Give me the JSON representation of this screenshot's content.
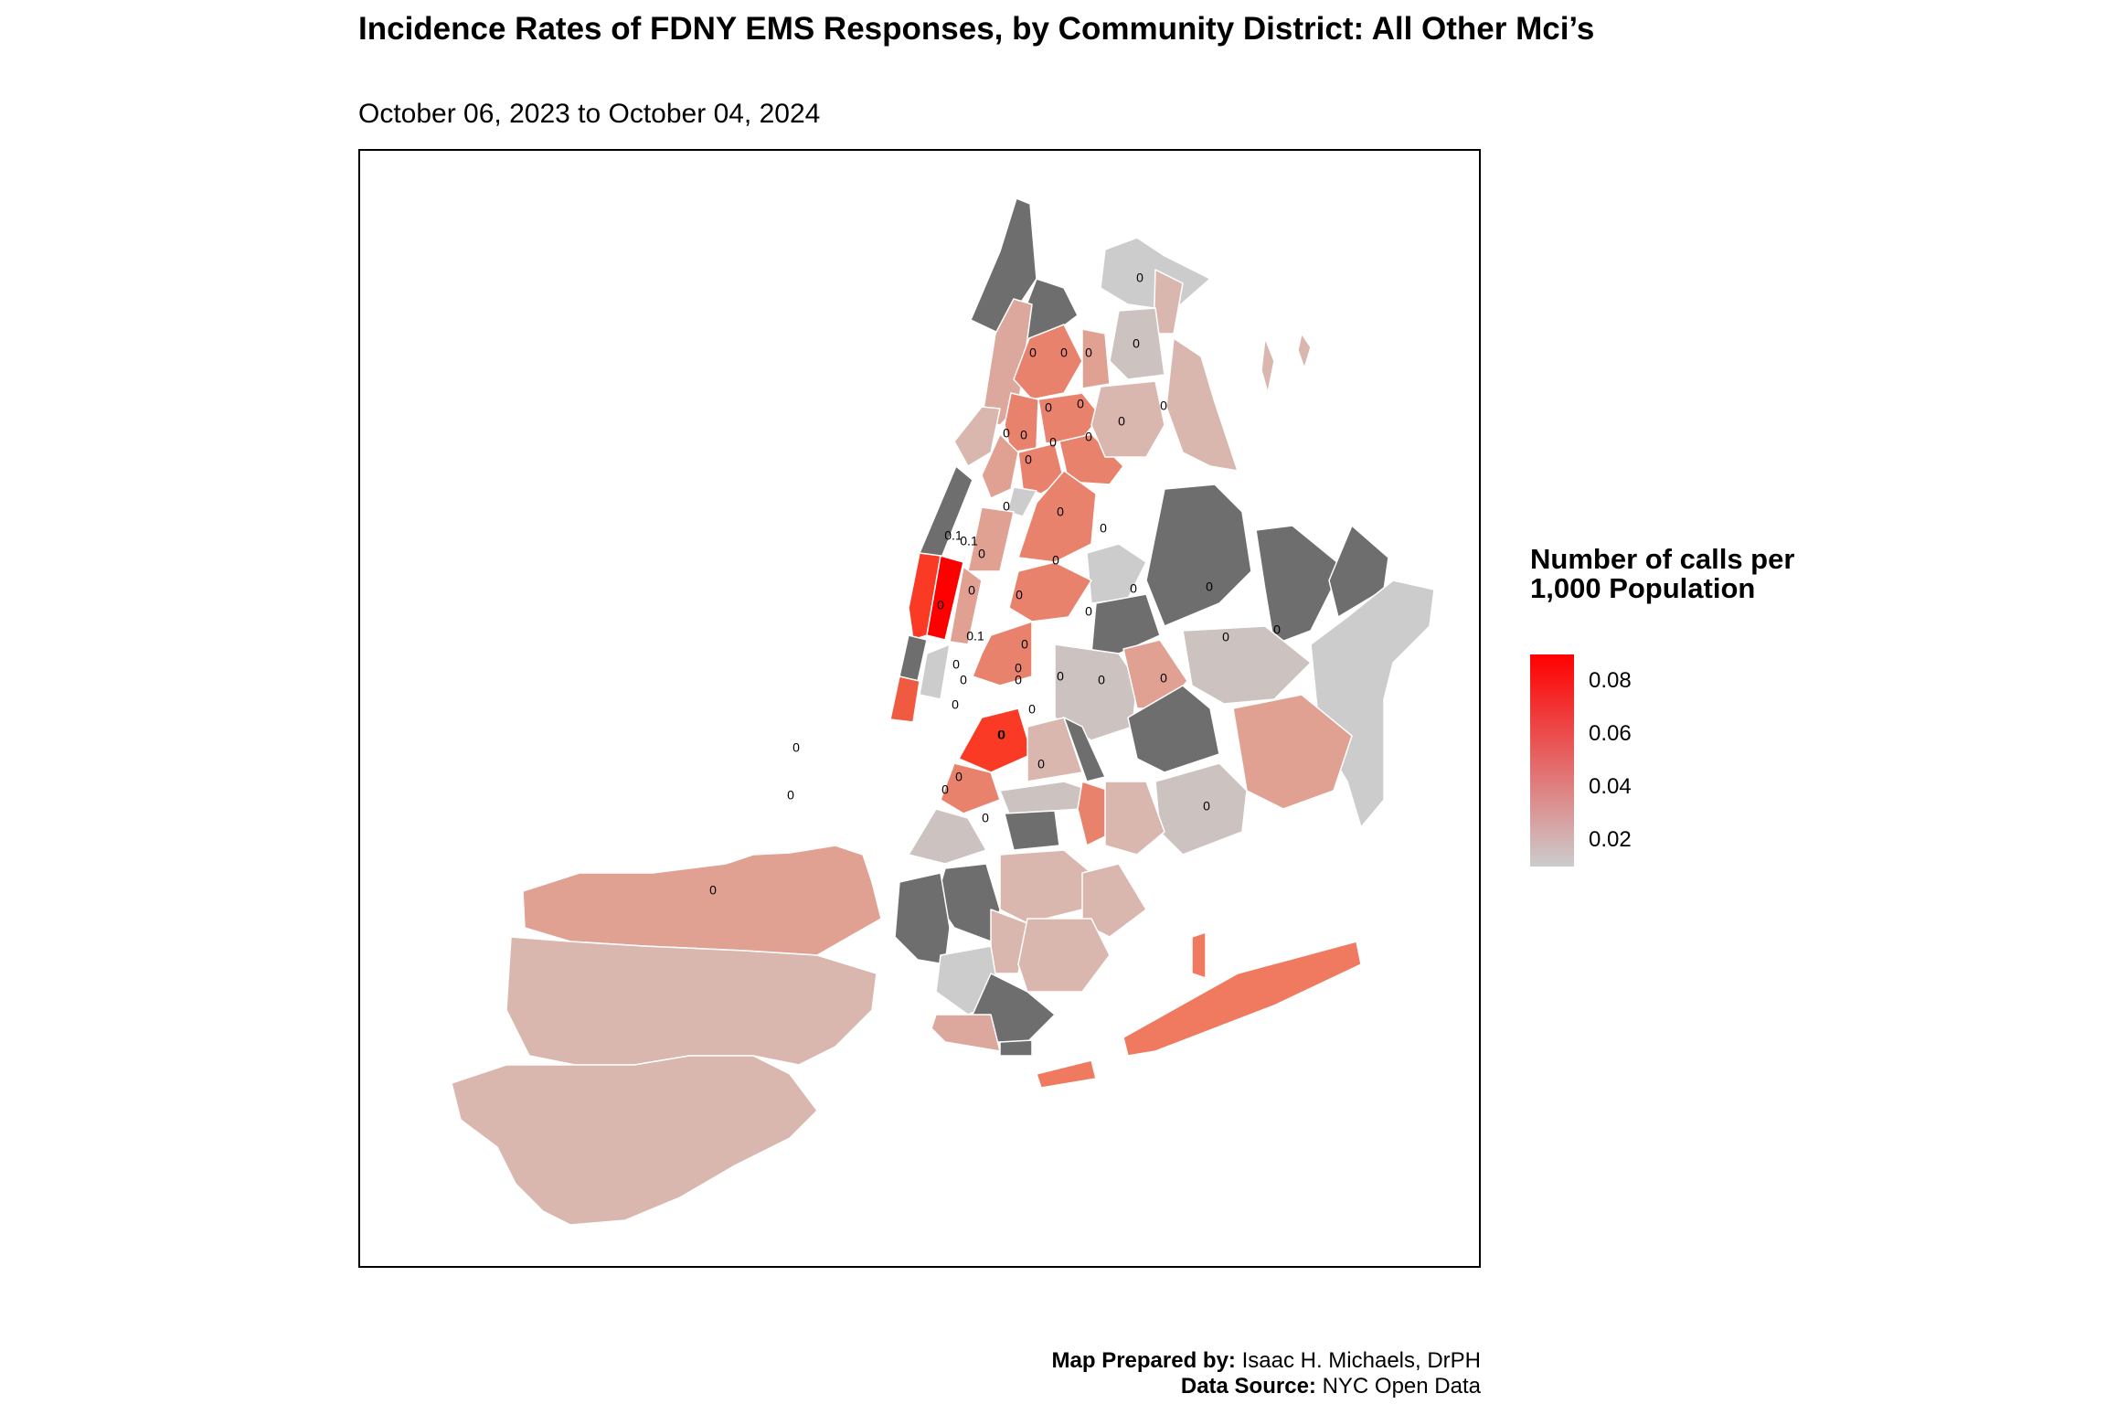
{
  "title": "Incidence Rates of FDNY EMS Responses, by Community District: All Other Mci’s",
  "subtitle": "October 06, 2023 to October 04, 2024",
  "legend": {
    "title": "Number of calls per 1,000 Population",
    "ticks": [
      "0.08",
      "0.06",
      "0.04",
      "0.02"
    ],
    "tick_values": [
      0.08,
      0.06,
      0.04,
      0.02
    ],
    "range": [
      0.01,
      0.09
    ],
    "color_low": "#cccccc",
    "color_high": "#ff0000",
    "no_data_color": "#6e6e6e"
  },
  "credits": {
    "prepared_label": "Map Prepared by:",
    "prepared_value": "Isaac H. Michaels, DrPH",
    "source_label": "Data Source:",
    "source_value": "NYC Open Data"
  },
  "map_labels": [
    "0",
    "0",
    "0",
    "0",
    "0",
    "0",
    "0",
    "0",
    "0",
    "0",
    "0",
    "0",
    "0",
    "0",
    "0",
    "0",
    "0.1",
    "0.1",
    "0",
    "0",
    "0",
    "0",
    "0",
    "0",
    "0",
    "0",
    "0",
    "0",
    "0",
    "0",
    "0.1",
    "0",
    "0",
    "0",
    "0",
    "0",
    "0",
    "0",
    "0",
    "0",
    "0",
    "0",
    "0",
    "0",
    "0",
    "0",
    "0",
    "0",
    "0",
    "0"
  ]
}
